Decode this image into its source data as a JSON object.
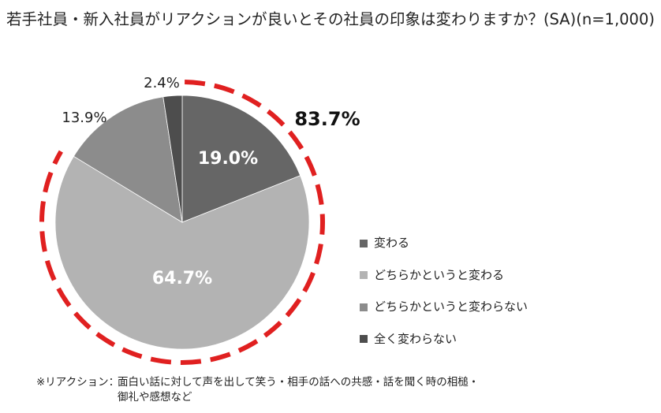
{
  "title": "若手社員・新入社員がリアクションが良いとその社員の印象は変わりますか？(SA)(n=1,000)",
  "chart_data": {
    "type": "pie",
    "categories": [
      "変わる",
      "どちらかというと変わる",
      "どちらかというと変わらない",
      "全く変わらない"
    ],
    "values": [
      19.0,
      64.7,
      13.9,
      2.4
    ],
    "value_labels": [
      "19.0%",
      "64.7%",
      "13.9%",
      "2.4%"
    ],
    "colors": [
      "#666666",
      "#b3b3b3",
      "#8c8c8c",
      "#4d4d4d"
    ],
    "start_angle_deg": 0,
    "direction": "clockwise",
    "legend_position": "right",
    "highlight": {
      "label": "83.7%",
      "categories": [
        "変わる",
        "どちらかというと変わる"
      ],
      "style": "red dashed ring",
      "color": "#e02020"
    }
  },
  "footnote": {
    "label": "※リアクション：",
    "line1": "面白い話に対して声を出して笑う・相手の話への共感・話を聞く時の相槌・",
    "line2": "御礼や感想など"
  }
}
